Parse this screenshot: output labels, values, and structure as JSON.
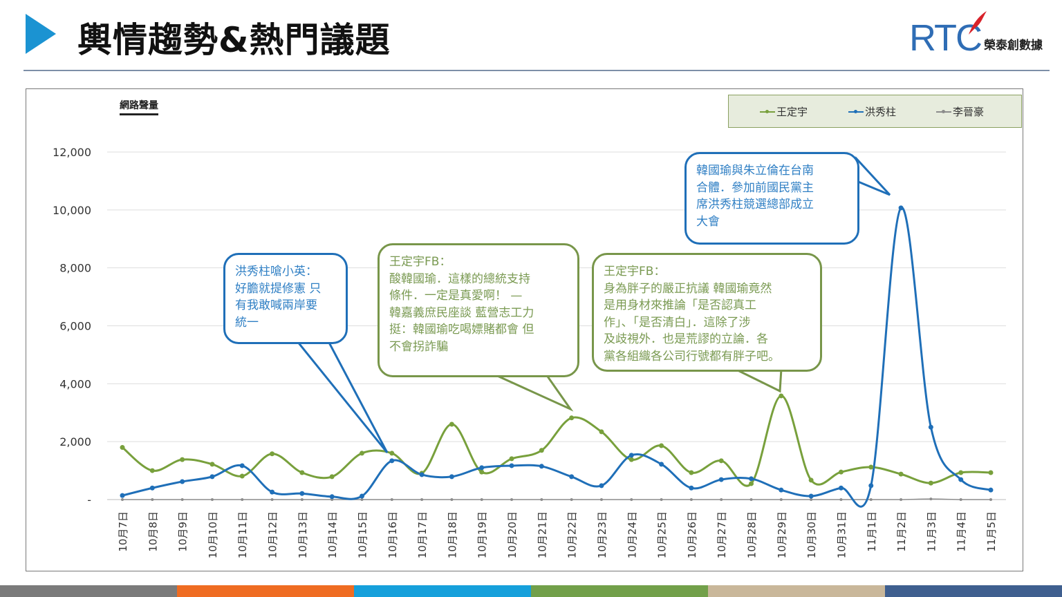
{
  "header": {
    "title": "輿情趨勢&熱門議題",
    "logo_text": "RTC",
    "logo_subtitle": "榮泰創數據"
  },
  "colors": {
    "green": "#78a03c",
    "blue": "#1f6fb8",
    "gray": "#8c8c8c",
    "accent": "#1b93d2"
  },
  "callouts": [
    {
      "text": "洪秀柱嗆小英：\n好膽就提修憲 只\n有我敢喊兩岸要\n統一",
      "series": "洪秀柱"
    },
    {
      "text": "王定宇FB：\n酸韓國瑜．這樣的總統支持\n條件．一定是真愛啊！ —\n韓嘉義庶民座談 藍營志工力\n挺：韓國瑜吃喝嫖賭都會 但\n不會拐詐騙",
      "series": "王定宇"
    },
    {
      "text": "王定宇FB：\n身為胖子的嚴正抗議 韓國瑜竟然\n是用身材來推論「是否認真工\n作」、「是否清白」．這除了涉\n及歧視外．也是荒謬的立論．各\n黨各組織各公司行號都有胖子吧。",
      "series": "王定宇"
    },
    {
      "text": "韓國瑜與朱立倫在台南\n合體．參加前國民黨主\n席洪秀柱競選總部成立\n大會",
      "series": "洪秀柱"
    }
  ],
  "chart_data": {
    "type": "line",
    "ylabel": "網路聲量",
    "ylim": [
      0,
      12000
    ],
    "yticks": [
      0,
      2000,
      4000,
      6000,
      8000,
      10000,
      12000
    ],
    "ytick_labels": [
      "-",
      "2,000",
      "4,000",
      "6,000",
      "8,000",
      "10,000",
      "12,000"
    ],
    "grid": true,
    "legend_position": "top-right",
    "categories": [
      "10月7日",
      "10月8日",
      "10月9日",
      "10月10日",
      "10月11日",
      "10月12日",
      "10月13日",
      "10月14日",
      "10月15日",
      "10月16日",
      "10月17日",
      "10月18日",
      "10月19日",
      "10月20日",
      "10月21日",
      "10月22日",
      "10月23日",
      "10月24日",
      "10月25日",
      "10月26日",
      "10月27日",
      "10月28日",
      "10月29日",
      "10月30日",
      "10月31日",
      "11月1日",
      "11月2日",
      "11月3日",
      "11月4日",
      "11月5日"
    ],
    "series": [
      {
        "name": "王定宇",
        "color": "#78a03c",
        "values": [
          1800,
          1000,
          1380,
          1220,
          810,
          1580,
          930,
          790,
          1600,
          1600,
          910,
          2600,
          950,
          1410,
          1700,
          2820,
          2340,
          1380,
          1860,
          930,
          1340,
          550,
          3580,
          670,
          950,
          1120,
          880,
          570,
          930,
          930
        ]
      },
      {
        "name": "洪秀柱",
        "color": "#1f6fb8",
        "values": [
          140,
          400,
          620,
          790,
          1170,
          260,
          210,
          100,
          120,
          1340,
          860,
          790,
          1100,
          1170,
          1150,
          790,
          480,
          1530,
          1220,
          400,
          690,
          720,
          330,
          120,
          400,
          480,
          10070,
          2500,
          690,
          330
        ]
      },
      {
        "name": "李晉豪",
        "color": "#8c8c8c",
        "values": [
          0,
          0,
          0,
          0,
          0,
          0,
          0,
          0,
          0,
          0,
          0,
          0,
          0,
          0,
          0,
          0,
          0,
          0,
          0,
          0,
          0,
          0,
          0,
          0,
          0,
          0,
          0,
          20,
          0,
          0
        ]
      }
    ]
  }
}
